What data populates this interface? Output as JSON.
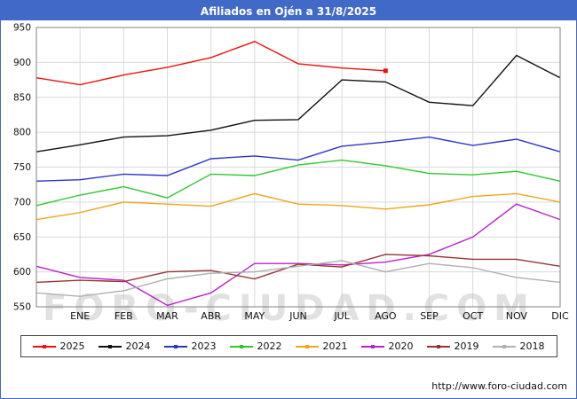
{
  "header": {
    "title": "Afiliados en Ojén a 31/8/2025",
    "bg_color": "#4169c8",
    "text_color": "#ffffff"
  },
  "watermark": "FORO-CIUDAD.COM",
  "footer": {
    "url": "http://www.foro-ciudad.com"
  },
  "chart_data": {
    "type": "line",
    "title": "Afiliados en Ojén a 31/8/2025",
    "xlabel": "",
    "ylabel": "",
    "ylim": [
      550,
      950
    ],
    "ytick_step": 50,
    "grid": true,
    "grid_color": "#d9d9d9",
    "border_color": "#808080",
    "legend_position": "bottom",
    "categories": [
      "ENE",
      "FEB",
      "MAR",
      "ABR",
      "MAY",
      "JUN",
      "JUL",
      "AGO",
      "SEP",
      "OCT",
      "NOV",
      "DIC"
    ],
    "series": [
      {
        "name": "2025",
        "color": "#ee1111",
        "lead_in": 878,
        "end_marker": true,
        "values": [
          868,
          882,
          893,
          907,
          930,
          898,
          892,
          888
        ]
      },
      {
        "name": "2024",
        "color": "#111111",
        "lead_in": 772,
        "values": [
          782,
          793,
          795,
          803,
          817,
          818,
          875,
          872,
          843,
          838,
          910,
          878
        ]
      },
      {
        "name": "2023",
        "color": "#2a35c8",
        "lead_in": 730,
        "values": [
          732,
          740,
          738,
          762,
          766,
          760,
          780,
          786,
          793,
          781,
          790,
          772
        ]
      },
      {
        "name": "2022",
        "color": "#2ec82e",
        "lead_in": 695,
        "values": [
          710,
          722,
          706,
          740,
          738,
          753,
          760,
          752,
          741,
          739,
          744,
          730
        ]
      },
      {
        "name": "2021",
        "color": "#f0a61b",
        "lead_in": 675,
        "values": [
          685,
          700,
          697,
          694,
          712,
          697,
          695,
          690,
          696,
          708,
          712,
          700
        ]
      },
      {
        "name": "2020",
        "color": "#b822c8",
        "lead_in": 608,
        "values": [
          592,
          588,
          552,
          570,
          612,
          612,
          610,
          614,
          625,
          650,
          697,
          675
        ]
      },
      {
        "name": "2019",
        "color": "#993333",
        "lead_in": 585,
        "values": [
          588,
          586,
          600,
          602,
          590,
          611,
          607,
          625,
          623,
          618,
          618,
          608
        ]
      },
      {
        "name": "2018",
        "color": "#b0b0b0",
        "lead_in": 570,
        "values": [
          565,
          573,
          590,
          598,
          600,
          608,
          616,
          600,
          612,
          606,
          592,
          585
        ]
      }
    ]
  }
}
